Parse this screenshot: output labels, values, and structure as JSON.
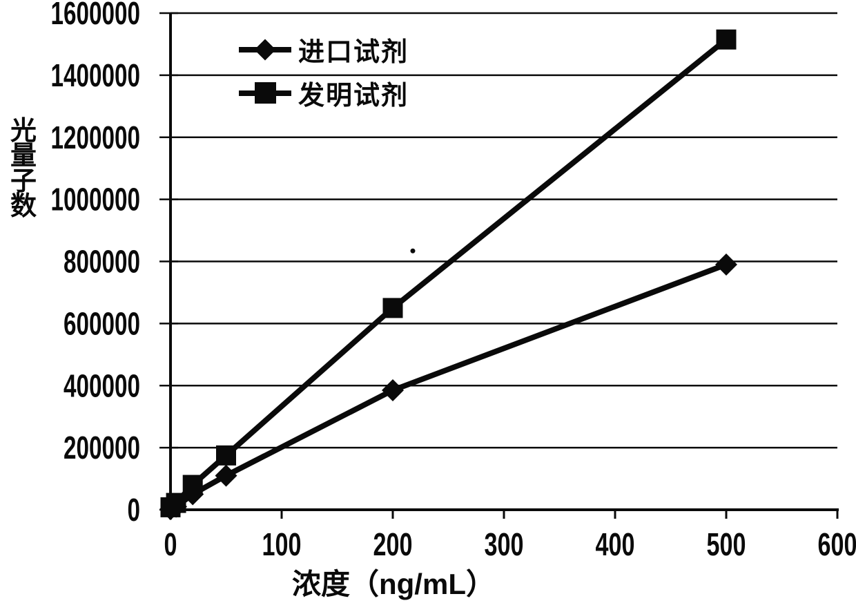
{
  "figure": {
    "background": "#ffffff",
    "ink_color": "#0a0a0a"
  },
  "chart_data": {
    "type": "line",
    "title": "",
    "xlabel": "浓度（ng/mL）",
    "ylabel": "光量子数",
    "xlim": [
      0,
      600
    ],
    "ylim": [
      0,
      1600000
    ],
    "x_ticks": [
      "0",
      "100",
      "200",
      "300",
      "400",
      "500",
      "600"
    ],
    "y_ticks": [
      "0",
      "200000",
      "400000",
      "600000",
      "800000",
      "1000000",
      "1200000",
      "1400000",
      "1600000"
    ],
    "grid": "horizontal-only",
    "legend_position": "inside-top-left",
    "x": [
      0,
      5,
      20,
      50,
      200,
      500
    ],
    "series": [
      {
        "name": "进口试剂",
        "marker": "diamond",
        "color": "#0a0a0a",
        "values": [
          2000,
          10000,
          50000,
          110000,
          385000,
          790000
        ]
      },
      {
        "name": "发明试剂",
        "marker": "square",
        "color": "#0a0a0a",
        "values": [
          8000,
          22000,
          80000,
          175000,
          650000,
          1515000
        ]
      }
    ],
    "annotations": [
      {
        "type": "stray-dot",
        "x": 218,
        "y": 834000
      }
    ]
  }
}
